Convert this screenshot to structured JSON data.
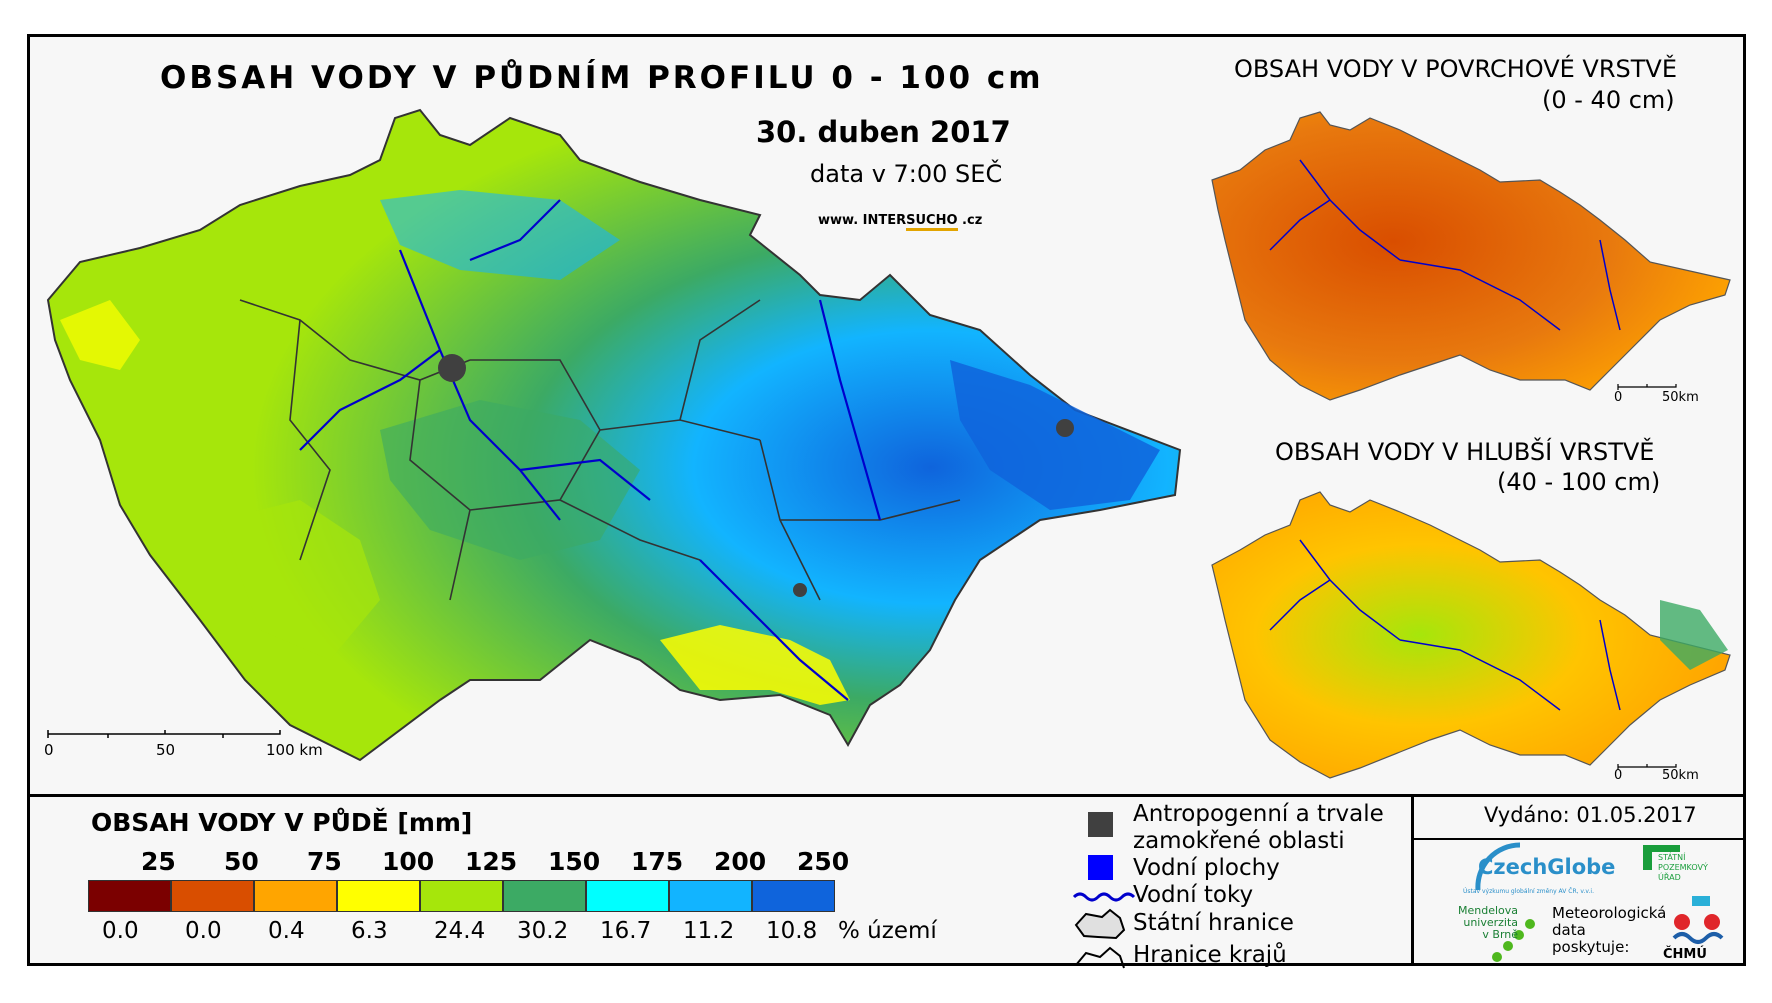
{
  "map": {
    "title": "OBSAH VODY V PŮDNÍM PROFILU 0 - 100 cm",
    "date": "30. duben 2017",
    "data_time": "data v 7:00 SEČ",
    "website_prefix": "www. INTER",
    "website_highlight": "SUCHO",
    "website_suffix": " .cz",
    "scale_labels": [
      "0",
      "50",
      "100 km"
    ]
  },
  "surface_map": {
    "title": "OBSAH VODY V POVRCHOVÉ VRSTVĚ",
    "range": "(0 - 40 cm)",
    "scale_labels": [
      "0",
      "50km"
    ]
  },
  "deep_map": {
    "title": "OBSAH VODY V HLUBŠÍ VRSTVĚ",
    "range": "(40 - 100 cm)",
    "scale_labels": [
      "0",
      "50km"
    ]
  },
  "legend": {
    "title": "OBSAH VODY V PŮDĚ [mm]",
    "thresholds": [
      "25",
      "50",
      "75",
      "100",
      "125",
      "150",
      "175",
      "200",
      "250"
    ],
    "classes": [
      {
        "color": "#7b0000",
        "percent": "0.0"
      },
      {
        "color": "#d94e00",
        "percent": "0.0"
      },
      {
        "color": "#ffa500",
        "percent": "0.4"
      },
      {
        "color": "#ffff00",
        "percent": "6.3"
      },
      {
        "color": "#a6e60b",
        "percent": "24.4"
      },
      {
        "color": "#3caa64",
        "percent": "30.2"
      },
      {
        "color": "#00ffff",
        "percent": "16.7"
      },
      {
        "color": "#12b4ff",
        "percent": "11.2"
      },
      {
        "color": "#0f64dc",
        "percent": "10.8"
      }
    ],
    "unit": "% území"
  },
  "symbols": {
    "anthropogenic_1": "Antropogenní a trvale",
    "anthropogenic_2": "zamokřené oblasti",
    "water_areas": "Vodní plochy",
    "rivers": "Vodní toky",
    "state_border": "Státní hranice",
    "region_border": "Hranice krajů"
  },
  "issued": "Vydáno: 01.05.2017",
  "logos": {
    "czechglobe": "CzechGlobe",
    "czechglobe_sub": "Ústav výzkumu globální změny AV ČR, v.v.i.",
    "spu_1": "STÁTNÍ",
    "spu_2": "POZEMKOVÝ",
    "spu_3": "ÚŘAD",
    "mendel_1": "Mendelova",
    "mendel_2": "univerzita",
    "mendel_3": "v Brně",
    "meteo_1": "Meteorologická",
    "meteo_2": "data",
    "meteo_3": "poskytuje:",
    "chmu": "ČHMÚ"
  }
}
